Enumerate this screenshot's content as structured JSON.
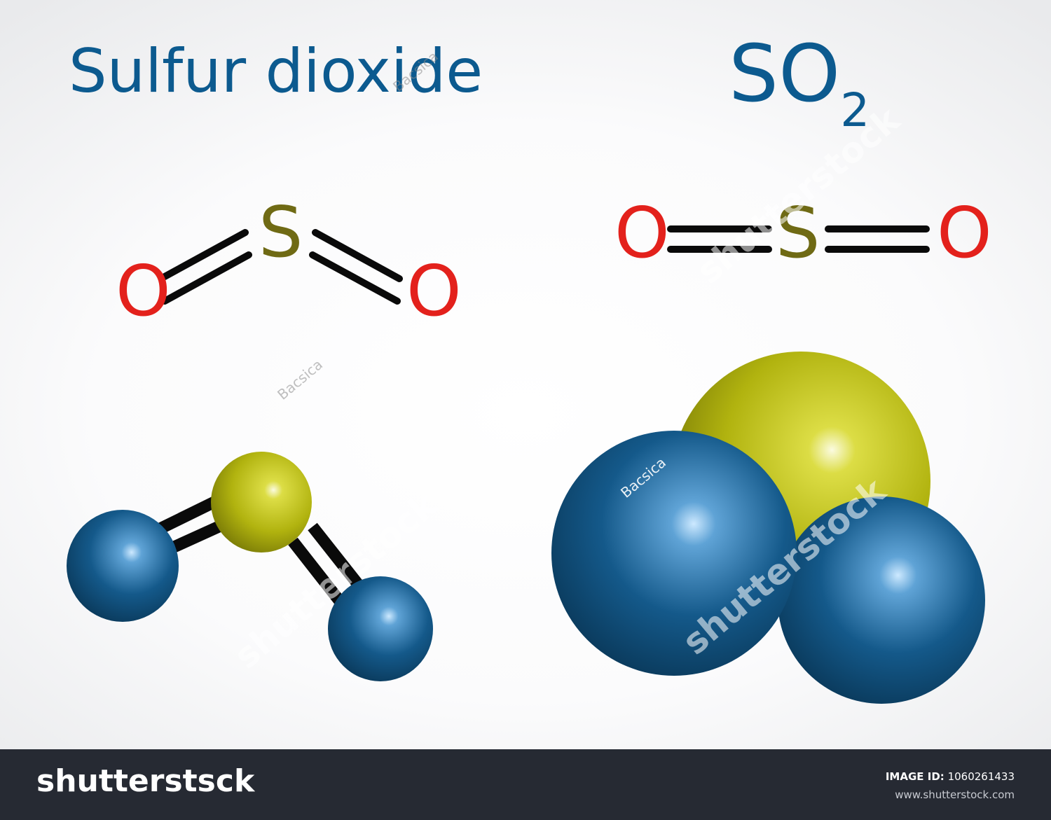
{
  "title": "Sulfur dioxide",
  "formula": {
    "main": "SO",
    "subscript": "2"
  },
  "atoms": {
    "sulfur": "S",
    "oxygen": "O"
  },
  "colors": {
    "title": "#0c5a8f",
    "sulfur_label": "#6f6a14",
    "oxygen_label": "#e3211c",
    "sulfur_sphere": "#b9bb12",
    "oxygen_sphere": "#0f5787",
    "bond": "#0a0a0a",
    "footer": "#262a33"
  },
  "watermark": {
    "text": "shutterstock",
    "author": "Bacsica"
  },
  "footer": {
    "brand": "shutterstsck",
    "image_id_label": "IMAGE ID:",
    "image_id": "1060261433",
    "site": "www.shutterstock.com"
  }
}
